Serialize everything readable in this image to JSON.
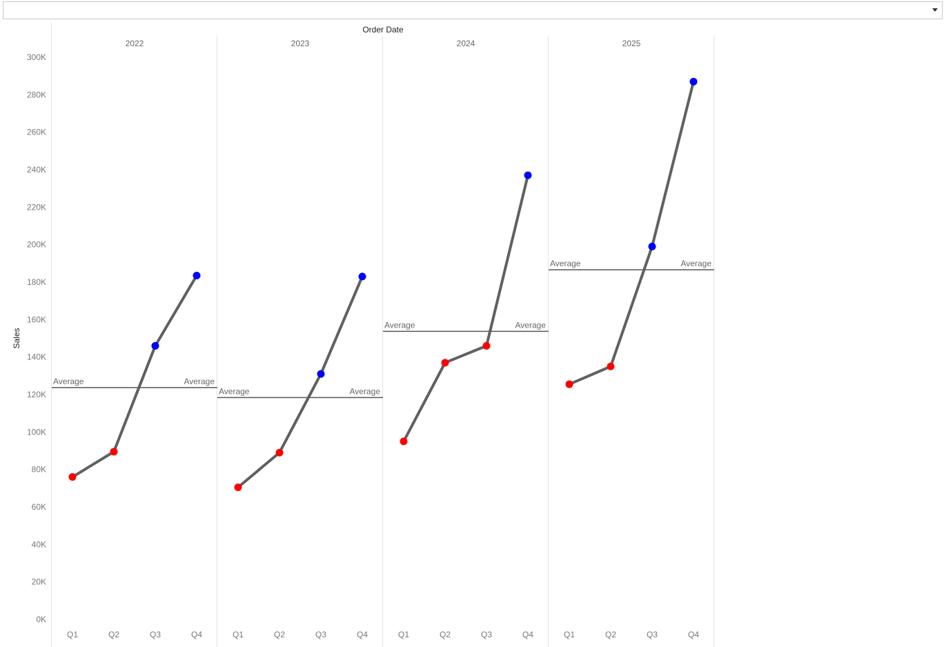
{
  "filter": {
    "value": ""
  },
  "chart_data": {
    "type": "line",
    "header": "Order Date",
    "ylabel": "Sales",
    "ylim": [
      0,
      300000
    ],
    "yticks": [
      0,
      20000,
      40000,
      60000,
      80000,
      100000,
      120000,
      140000,
      160000,
      180000,
      200000,
      220000,
      240000,
      260000,
      280000,
      300000
    ],
    "ytick_labels": [
      "0K",
      "20K",
      "40K",
      "60K",
      "80K",
      "100K",
      "120K",
      "140K",
      "160K",
      "180K",
      "200K",
      "220K",
      "240K",
      "260K",
      "280K",
      "300K"
    ],
    "categories": [
      "Q1",
      "Q2",
      "Q3",
      "Q4"
    ],
    "panels": [
      {
        "year": "2022",
        "values": [
          76000,
          89500,
          146000,
          183500
        ],
        "average": 123750,
        "average_label": "Average"
      },
      {
        "year": "2023",
        "values": [
          70500,
          89000,
          131000,
          183000
        ],
        "average": 118400,
        "average_label": "Average"
      },
      {
        "year": "2024",
        "values": [
          95000,
          137000,
          146000,
          237000
        ],
        "average": 153750,
        "average_label": "Average"
      },
      {
        "year": "2025",
        "values": [
          125500,
          135000,
          199000,
          287000
        ],
        "average": 186600,
        "average_label": "Average"
      }
    ],
    "colors": {
      "line": "#606060",
      "below_average": "#ff0000",
      "above_average": "#0000ff",
      "average_line": "#555555",
      "divider": "#e2e2e2"
    },
    "grid": false
  }
}
